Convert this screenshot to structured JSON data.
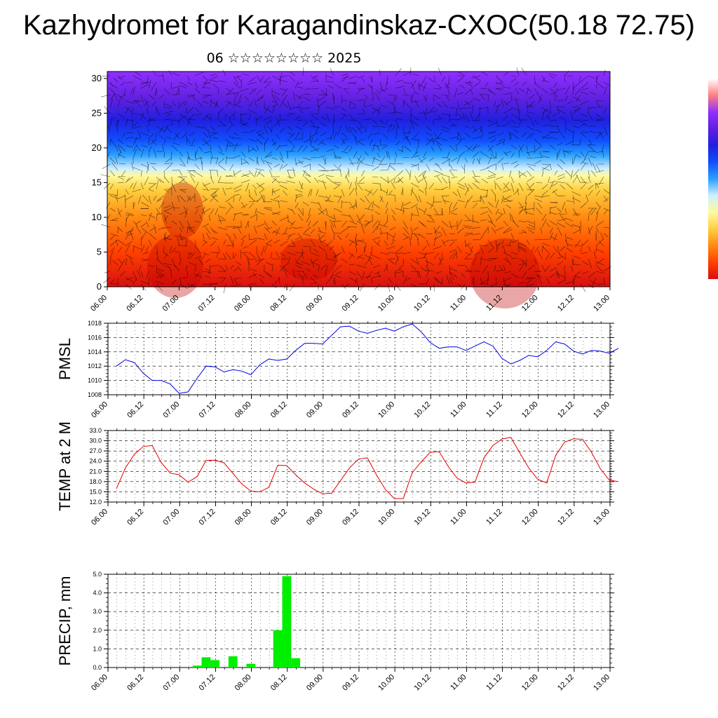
{
  "title": "Kazhydromet for Karagandinskaz-CXOC(50.18 72.75)",
  "subtitle": "06 ☆☆☆☆☆☆☆☆ 2025",
  "colors": {
    "pmsl_line": "#0000e6",
    "temp_line": "#e60000",
    "precip_bar": "#00ee00",
    "grid": "#000000"
  },
  "x_ticks": [
    "06.00",
    "06.12",
    "07.00",
    "07.12",
    "08.00",
    "08.12",
    "09.00",
    "09.12",
    "10.00",
    "10.12",
    "11.00",
    "11.12",
    "12.00",
    "12.12",
    "13.00"
  ],
  "chart_data": [
    {
      "type": "heatmap",
      "ylim": [
        0,
        31
      ],
      "y_ticks": [
        "0",
        "5",
        "10",
        "15",
        "20",
        "25",
        "30"
      ],
      "x_ticks": [
        "06.00",
        "06.12",
        "07.00",
        "07.12",
        "08.00",
        "08.12",
        "09.00",
        "09.12",
        "10.00",
        "10.12",
        "11.00",
        "11.12",
        "12.00",
        "12.12",
        "13.00"
      ],
      "colormap": [
        "#d81010",
        "#ff4000",
        "#ff8a10",
        "#ffd040",
        "#fffaa0",
        "#cfefff",
        "#2aa0ff",
        "#1050ff",
        "#2020e0",
        "#6020e0",
        "#9030ff"
      ],
      "colormap_break_heights": [
        0,
        5,
        10,
        14,
        16,
        17,
        19,
        21,
        24,
        27,
        31
      ],
      "overlay": "wind barbs"
    },
    {
      "type": "line",
      "ylabel": "PMSL",
      "ylim": [
        1008,
        1018
      ],
      "y_ticks": [
        "1008",
        "1010",
        "1012",
        "1014",
        "1016",
        "1018"
      ],
      "x_ticks": [
        "06.00",
        "06.12",
        "07.00",
        "07.12",
        "08.00",
        "08.12",
        "09.00",
        "09.12",
        "10.00",
        "10.12",
        "11.00",
        "11.12",
        "12.00",
        "12.12",
        "13.00"
      ],
      "x_step_hours": 3,
      "values": [
        1012.0,
        1012.9,
        1012.5,
        1011.0,
        1010.0,
        1010.0,
        1009.5,
        1008.2,
        1008.4,
        1010.3,
        1012.0,
        1011.9,
        1011.2,
        1011.5,
        1011.3,
        1010.8,
        1012.2,
        1013.0,
        1012.8,
        1013.0,
        1014.2,
        1015.2,
        1015.2,
        1015.1,
        1016.3,
        1017.5,
        1017.6,
        1016.9,
        1016.6,
        1017.0,
        1017.3,
        1016.9,
        1017.5,
        1017.9,
        1016.8,
        1015.3,
        1014.5,
        1014.7,
        1014.7,
        1014.2,
        1014.8,
        1015.4,
        1014.8,
        1013.1,
        1012.3,
        1012.8,
        1013.5,
        1013.3,
        1014.2,
        1015.4,
        1015.1,
        1014.1,
        1013.7,
        1014.2,
        1014.1,
        1013.8,
        1014.5
      ]
    },
    {
      "type": "line",
      "ylabel": "TEMP at 2 M",
      "ylim": [
        12.0,
        33.0
      ],
      "y_ticks": [
        "12.0",
        "15.0",
        "18.0",
        "21.0",
        "24.0",
        "27.0",
        "30.0",
        "33.0"
      ],
      "x_ticks": [
        "06.00",
        "06.12",
        "07.00",
        "07.12",
        "08.00",
        "08.12",
        "09.00",
        "09.12",
        "10.00",
        "10.12",
        "11.00",
        "11.12",
        "12.00",
        "12.12",
        "13.00"
      ],
      "x_step_hours": 3,
      "values": [
        15.9,
        22.0,
        26.0,
        28.3,
        28.6,
        23.6,
        20.5,
        20.0,
        17.8,
        19.5,
        24.2,
        24.3,
        23.5,
        20.4,
        17.3,
        15.2,
        15.0,
        16.3,
        22.8,
        22.7,
        20.0,
        17.6,
        15.8,
        14.4,
        14.6,
        18.3,
        22.0,
        24.6,
        25.0,
        20.0,
        15.7,
        13.0,
        13.0,
        20.6,
        23.8,
        26.6,
        26.8,
        22.5,
        19.0,
        17.6,
        17.8,
        25.0,
        28.6,
        30.5,
        31.0,
        26.4,
        22.0,
        18.7,
        17.6,
        25.7,
        29.6,
        30.6,
        30.4,
        26.6,
        21.7,
        18.4,
        18.0
      ]
    },
    {
      "type": "bar",
      "ylabel": "PRECIP, mm",
      "ylim": [
        0.0,
        5.0
      ],
      "y_ticks": [
        "0.0",
        "1.0",
        "2.0",
        "3.0",
        "4.0",
        "5.0"
      ],
      "x_ticks": [
        "06.00",
        "06.12",
        "07.00",
        "07.12",
        "08.00",
        "08.12",
        "09.00",
        "09.12",
        "10.00",
        "10.12",
        "11.00",
        "11.12",
        "12.00",
        "12.12",
        "13.00"
      ],
      "bar_width_hours": 3,
      "bars": [
        {
          "x": "07.03",
          "value": 0.1
        },
        {
          "x": "07.06",
          "value": 0.55
        },
        {
          "x": "07.09",
          "value": 0.4
        },
        {
          "x": "07.15",
          "value": 0.6
        },
        {
          "x": "07.21",
          "value": 0.2
        },
        {
          "x": "08.06",
          "value": 2.0
        },
        {
          "x": "08.09",
          "value": 4.9
        },
        {
          "x": "08.12",
          "value": 0.5
        }
      ]
    }
  ]
}
